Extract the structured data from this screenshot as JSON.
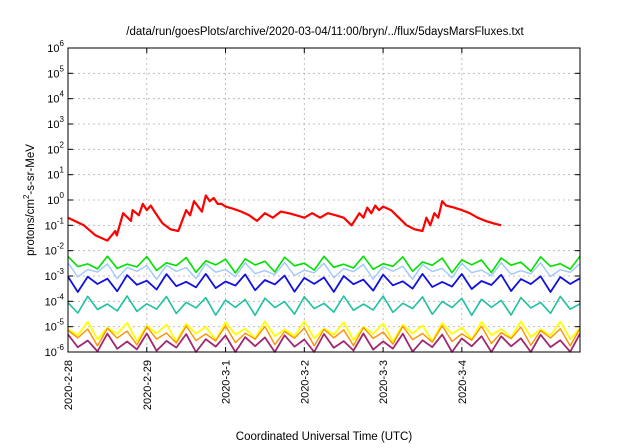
{
  "chart_data": {
    "type": "line",
    "title": "/data/run/goesPlots/archive/2020-03-04/11:00/bryn/../flux/5daysMarsFluxes.txt",
    "xlabel": "Coordinated Universal Time (UTC)",
    "ylabel_parts": [
      "protons/cm",
      "2",
      "-s-sr-MeV"
    ],
    "x_range": [
      0,
      6.5
    ],
    "x_ticks": [
      {
        "value": 0,
        "label": "2020-2-28"
      },
      {
        "value": 1,
        "label": "2020-2-29"
      },
      {
        "value": 2,
        "label": "2020-3-1"
      },
      {
        "value": 3,
        "label": "2020-3-2"
      },
      {
        "value": 4,
        "label": "2020-3-3"
      },
      {
        "value": 5,
        "label": "2020-3-4"
      }
    ],
    "y_scale": "log",
    "y_range_exp": [
      -6,
      6
    ],
    "y_ticks_exp": [
      -6,
      -5,
      -4,
      -3,
      -2,
      -1,
      0,
      1,
      2,
      3,
      4,
      5,
      6
    ],
    "grid": true,
    "series": [
      {
        "color": "#ff0000",
        "width": 2.2,
        "x": [
          0,
          0.2,
          0.35,
          0.5,
          0.6,
          0.62,
          0.7,
          0.8,
          0.82,
          0.9,
          0.95,
          1.0,
          1.05,
          1.1,
          1.15,
          1.2,
          1.3,
          1.4,
          1.5,
          1.55,
          1.6,
          1.7,
          1.75,
          1.8,
          1.85,
          1.9,
          1.95,
          2.0,
          2.1,
          2.2,
          2.3,
          2.4,
          2.5,
          2.6,
          2.7,
          2.8,
          2.9,
          3.0,
          3.1,
          3.2,
          3.3,
          3.4,
          3.5,
          3.6,
          3.7,
          3.75,
          3.8,
          3.85,
          3.9,
          3.95,
          4.0,
          4.1,
          4.2,
          4.3,
          4.4,
          4.5,
          4.55,
          4.6,
          4.65,
          4.7,
          4.75,
          4.8,
          4.9,
          5.0,
          5.1,
          5.2,
          5.3,
          5.4,
          5.5
        ],
        "y": [
          0.2,
          0.1,
          0.04,
          0.025,
          0.06,
          0.04,
          0.3,
          0.15,
          0.4,
          0.25,
          0.7,
          0.4,
          0.6,
          0.35,
          0.2,
          0.12,
          0.07,
          0.06,
          0.4,
          0.25,
          0.9,
          0.35,
          1.5,
          0.9,
          1.2,
          0.7,
          0.7,
          0.55,
          0.45,
          0.35,
          0.25,
          0.15,
          0.3,
          0.2,
          0.35,
          0.3,
          0.25,
          0.2,
          0.3,
          0.2,
          0.3,
          0.25,
          0.2,
          0.1,
          0.3,
          0.2,
          0.5,
          0.3,
          0.6,
          0.4,
          0.55,
          0.4,
          0.2,
          0.1,
          0.07,
          0.06,
          0.2,
          0.1,
          0.3,
          0.2,
          0.9,
          0.6,
          0.5,
          0.4,
          0.3,
          0.2,
          0.15,
          0.12,
          0.1
        ]
      },
      {
        "color": "#00e000",
        "width": 1.6,
        "base": 0.0045,
        "amp": 2.2,
        "phase": 0
      },
      {
        "color": "#a0c8ff",
        "width": 1.4,
        "base": 0.0025,
        "amp": 2.2,
        "phase": 0.02
      },
      {
        "color": "#1010e0",
        "width": 1.8,
        "base": 0.0009,
        "amp": 2.5,
        "phase": 0.05
      },
      {
        "color": "#20c0a0",
        "width": 1.6,
        "base": 0.00012,
        "amp": 2.8,
        "phase": 0.03
      },
      {
        "color": "#ffff00",
        "width": 1.8,
        "base": 1.2e-05,
        "amp": 3.0,
        "phase": 0.04
      },
      {
        "color": "#ff9000",
        "width": 1.4,
        "base": 8e-06,
        "amp": 3.0,
        "phase": 0.06
      },
      {
        "color": "#a02870",
        "width": 1.8,
        "base": 4e-06,
        "amp": 3.2,
        "phase": 0.08
      }
    ]
  }
}
